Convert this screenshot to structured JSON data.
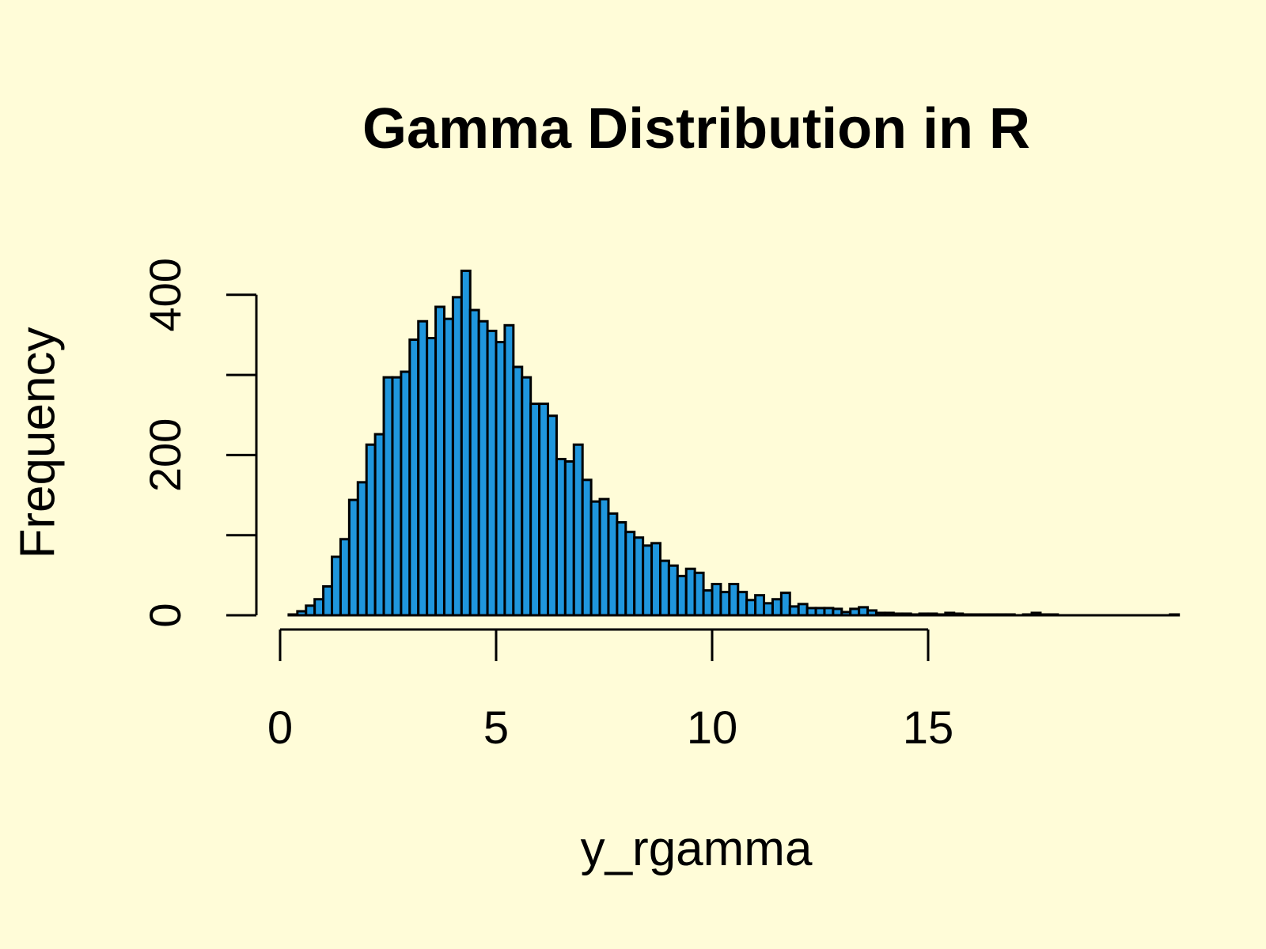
{
  "chart_data": {
    "type": "bar",
    "title": "Gamma Distribution in R",
    "xlabel": "y_rgamma",
    "ylabel": "Frequency",
    "bin_start": 0.2,
    "bin_width": 0.2,
    "xlim": [
      0,
      19
    ],
    "ylim": [
      0,
      430
    ],
    "x_ticks": [
      0,
      5,
      10,
      15
    ],
    "y_ticks": [
      0,
      100,
      200,
      300,
      400
    ],
    "y_tick_labels": [
      "0",
      "",
      "200",
      "",
      "400"
    ],
    "bar_color": "#1f96dd",
    "edge_color": "#000000",
    "background": "#fffcd8",
    "grid": false,
    "values": [
      1,
      5,
      12,
      20,
      36,
      73,
      95,
      144,
      166,
      213,
      226,
      297,
      297,
      304,
      344,
      367,
      346,
      385,
      370,
      397,
      430,
      381,
      367,
      355,
      341,
      362,
      310,
      297,
      264,
      264,
      249,
      195,
      192,
      213,
      169,
      142,
      145,
      127,
      116,
      104,
      97,
      87,
      90,
      68,
      62,
      49,
      58,
      53,
      31,
      39,
      29,
      39,
      29,
      19,
      25,
      15,
      20,
      28,
      11,
      14,
      9,
      9,
      9,
      8,
      4,
      8,
      10,
      6,
      3,
      3,
      2,
      2,
      1,
      2,
      2,
      1,
      3,
      2,
      1,
      1,
      1,
      1,
      1,
      1,
      0,
      1,
      3,
      1,
      1,
      0,
      0,
      0,
      0,
      0,
      0,
      0,
      0,
      0,
      0,
      0,
      0,
      0,
      1
    ]
  }
}
